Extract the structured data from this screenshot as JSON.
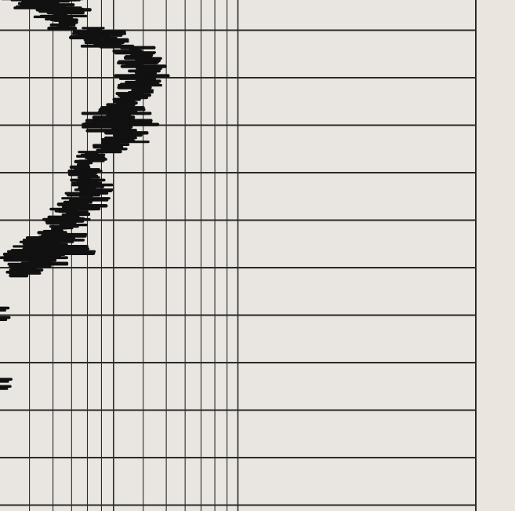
{
  "colors": {
    "paper": "#e9e6e1",
    "margin": "#ebe6dd",
    "grid": "#2a2a26",
    "trace": "#111111"
  },
  "chart_data": {
    "type": "line",
    "title": "",
    "xlabel": "",
    "ylabel": "",
    "x_scale": "log",
    "grid": true,
    "legend": "none",
    "tick_labels_visible": false,
    "xlim": [
      1,
      100
    ],
    "ylim": [
      11,
      0
    ],
    "vertical_grid_values": [
      1.33,
      1.67,
      2,
      2.33,
      2.67,
      3,
      4,
      5,
      6,
      7,
      8,
      9,
      10
    ],
    "horizontal_grid_values": [
      1,
      2,
      3,
      4,
      5,
      6,
      7,
      8,
      9,
      10,
      11
    ],
    "series": [
      {
        "name": "",
        "band": [
          {
            "y": 0.05,
            "x": [
              1.0,
              2.5
            ]
          },
          {
            "y": 0.25,
            "x": [
              1.0,
              2.6
            ]
          },
          {
            "y": 0.45,
            "x": [
              1.0,
              2.5
            ]
          },
          {
            "y": 0.65,
            "x": [
              1.4,
              2.3
            ]
          },
          {
            "y": 0.85,
            "x": [
              1.6,
              2.1
            ]
          },
          {
            "y": 1.05,
            "x": [
              1.8,
              3.6
            ]
          },
          {
            "y": 1.25,
            "x": [
              2.2,
              3.9
            ]
          },
          {
            "y": 1.45,
            "x": [
              3.0,
              4.5
            ]
          },
          {
            "y": 1.65,
            "x": [
              3.1,
              4.8
            ]
          },
          {
            "y": 1.85,
            "x": [
              3.2,
              5.2
            ]
          },
          {
            "y": 2.05,
            "x": [
              3.0,
              5.6
            ]
          },
          {
            "y": 2.25,
            "x": [
              3.1,
              4.5
            ]
          },
          {
            "y": 2.45,
            "x": [
              2.9,
              4.3
            ]
          },
          {
            "y": 2.65,
            "x": [
              2.6,
              4.1
            ]
          },
          {
            "y": 2.85,
            "x": [
              2.2,
              4.4
            ]
          },
          {
            "y": 3.05,
            "x": [
              2.2,
              4.6
            ]
          },
          {
            "y": 3.25,
            "x": [
              2.6,
              4.4
            ]
          },
          {
            "y": 3.45,
            "x": [
              2.3,
              3.6
            ]
          },
          {
            "y": 3.65,
            "x": [
              2.1,
              2.9
            ]
          },
          {
            "y": 3.85,
            "x": [
              1.9,
              2.7
            ]
          },
          {
            "y": 4.05,
            "x": [
              1.95,
              2.8
            ]
          },
          {
            "y": 4.25,
            "x": [
              1.9,
              3.0
            ]
          },
          {
            "y": 4.45,
            "x": [
              1.8,
              3.0
            ]
          },
          {
            "y": 4.65,
            "x": [
              1.7,
              2.9
            ]
          },
          {
            "y": 4.85,
            "x": [
              1.6,
              2.6
            ]
          },
          {
            "y": 5.05,
            "x": [
              1.5,
              2.4
            ]
          },
          {
            "y": 5.25,
            "x": [
              1.3,
              2.3
            ]
          },
          {
            "y": 5.45,
            "x": [
              1.1,
              2.3
            ]
          },
          {
            "y": 5.65,
            "x": [
              1.0,
              2.5
            ]
          },
          {
            "y": 5.85,
            "x": [
              1.0,
              2.0
            ]
          },
          {
            "y": 6.05,
            "x": [
              1.0,
              1.5
            ]
          }
        ],
        "fragments": [
          {
            "y": 6.85,
            "x": [
              1.0,
              1.05
            ]
          },
          {
            "y": 7.05,
            "x": [
              1.0,
              1.06
            ]
          },
          {
            "y": 8.35,
            "x": [
              1.0,
              1.08
            ]
          },
          {
            "y": 8.5,
            "x": [
              1.0,
              1.07
            ]
          }
        ]
      }
    ]
  }
}
